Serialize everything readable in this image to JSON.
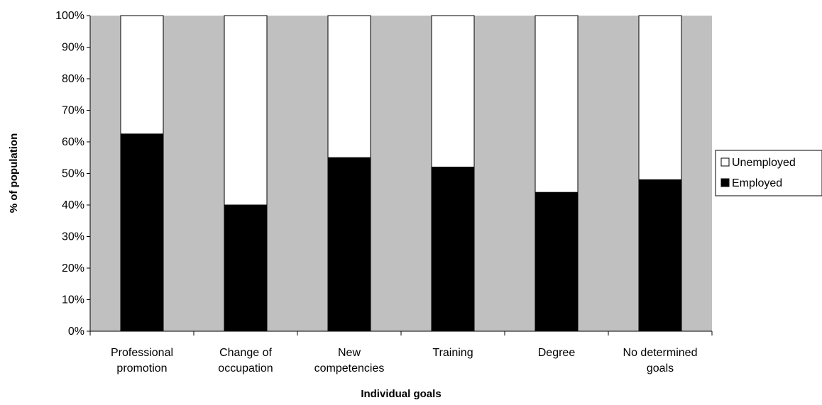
{
  "chart_data": {
    "type": "bar",
    "stacked": true,
    "percent": true,
    "title": "",
    "xlabel": "Individual goals",
    "ylabel": "% of population",
    "ylim": [
      0,
      100
    ],
    "yticks": [
      "0%",
      "10%",
      "20%",
      "30%",
      "40%",
      "50%",
      "60%",
      "70%",
      "80%",
      "90%",
      "100%"
    ],
    "categories": [
      [
        "Professional",
        "promotion"
      ],
      [
        "Change of",
        "occupation"
      ],
      [
        "New",
        "competencies"
      ],
      [
        "Training"
      ],
      [
        "Degree"
      ],
      [
        "No determined",
        "goals"
      ]
    ],
    "series": [
      {
        "name": "Employed",
        "color": "#000000",
        "values": [
          62.5,
          40,
          55,
          52,
          44,
          48
        ]
      },
      {
        "name": "Unemployed",
        "color": "#ffffff",
        "values": [
          37.5,
          60,
          45,
          48,
          56,
          52
        ]
      }
    ],
    "legend_order": [
      "Unemployed",
      "Employed"
    ],
    "legend_position": "right",
    "plot_background": "#c0c0c0",
    "grid": false
  }
}
